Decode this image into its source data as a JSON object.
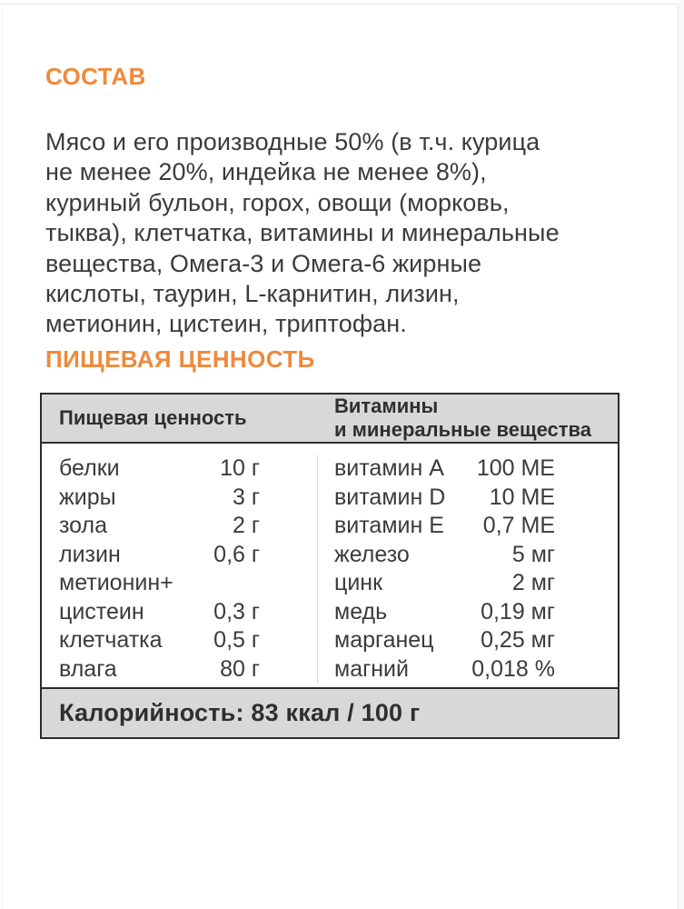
{
  "page": {
    "background": "#ffffff",
    "accent_color": "#ee8a3c",
    "text_color": "#3b3b3b",
    "table_band_bg": "#d8d8d8",
    "table_border": "#2b2b2b",
    "table_divider": "#d9d9d9"
  },
  "composition": {
    "heading": "СОСТАВ",
    "lines": [
      "Мясо и его производные 50% (в т.ч. курица",
      "не менее 20%, индейка не менее 8%),",
      "куриный бульон, горох, овощи (морковь,",
      "тыква), клетчатка, витамины и минеральные",
      "вещества, Омега-3 и Омега-6 жирные",
      "кислоты, таурин, L-карнитин, лизин,",
      "метионин, цистеин, триптофан."
    ]
  },
  "nutrition": {
    "heading": "ПИЩЕВАЯ ЦЕННОСТЬ",
    "table": {
      "left_header": "Пищевая ценность",
      "right_header_lines": [
        "Витамины",
        "и минеральные вещества"
      ],
      "left_rows": [
        {
          "label": "белки",
          "value": "10 г"
        },
        {
          "label": "жиры",
          "value": "3 г"
        },
        {
          "label": "зола",
          "value": "2 г"
        },
        {
          "label": "лизин",
          "value": "0,6 г"
        },
        {
          "label": "метионин+",
          "value": ""
        },
        {
          "label": "цистеин",
          "value": "0,3 г"
        },
        {
          "label": "клетчатка",
          "value": "0,5 г"
        },
        {
          "label": "влага",
          "value": "80 г"
        }
      ],
      "right_rows": [
        {
          "label": "витамин A",
          "value": "100 МЕ"
        },
        {
          "label": "витамин D",
          "value": "10 МЕ"
        },
        {
          "label": "витамин E",
          "value": "0,7 МЕ"
        },
        {
          "label": "железо",
          "value": "5 мг"
        },
        {
          "label": "цинк",
          "value": "2 мг"
        },
        {
          "label": "медь",
          "value": "0,19 мг"
        },
        {
          "label": "марганец",
          "value": "0,25 мг"
        },
        {
          "label": "магний",
          "value": "0,018 %"
        }
      ],
      "footer": "Калорийность: 83 ккал / 100 г"
    }
  }
}
